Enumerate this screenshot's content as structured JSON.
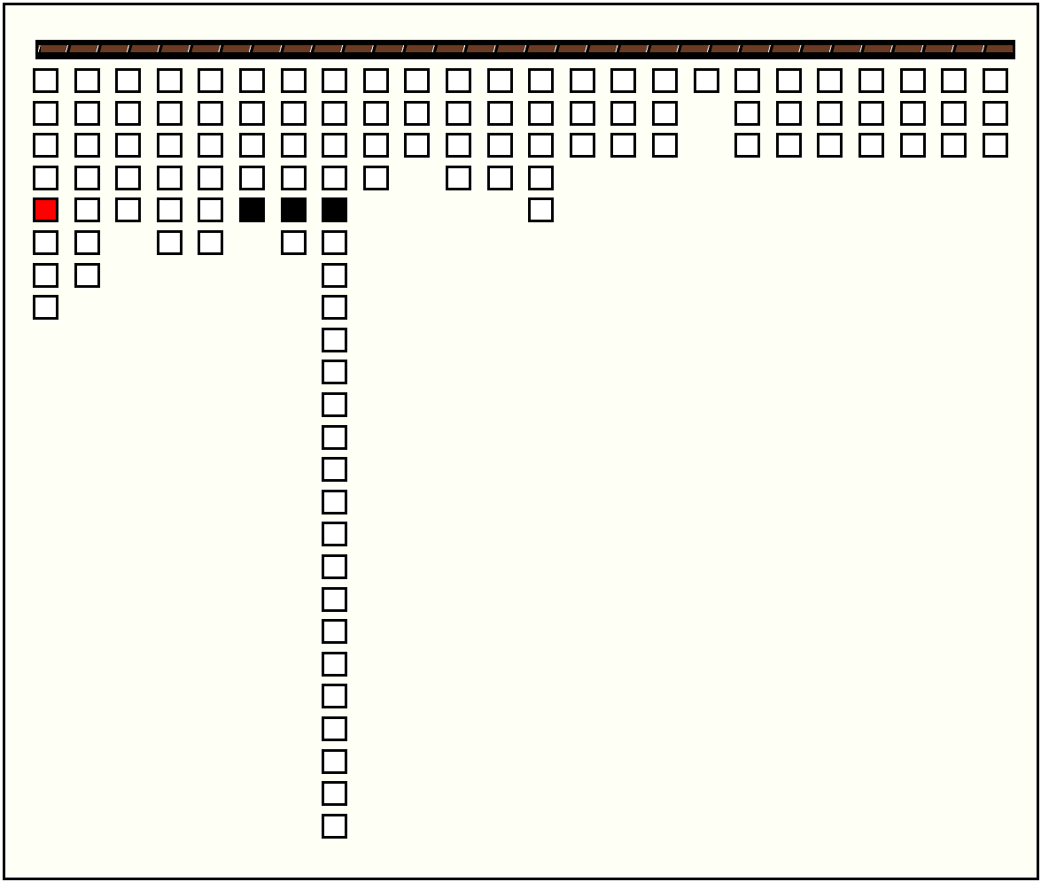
{
  "board": {
    "column_heights": [
      8,
      7,
      5,
      6,
      6,
      5,
      6,
      24,
      4,
      3,
      4,
      4,
      5,
      3,
      3,
      3,
      1,
      3,
      3,
      3,
      3,
      3,
      3,
      3
    ],
    "special_cells": [
      {
        "column": 0,
        "row": 4,
        "state": "red"
      },
      {
        "column": 5,
        "row": 4,
        "state": "black"
      },
      {
        "column": 6,
        "row": 4,
        "state": "black"
      },
      {
        "column": 7,
        "row": 4,
        "state": "black"
      }
    ],
    "colors": {
      "background": "#fefff5",
      "cell": "#ffffff",
      "border": "#000000",
      "highlight": "#ff0000",
      "filled": "#000000",
      "bar": "#6b3a22"
    }
  }
}
